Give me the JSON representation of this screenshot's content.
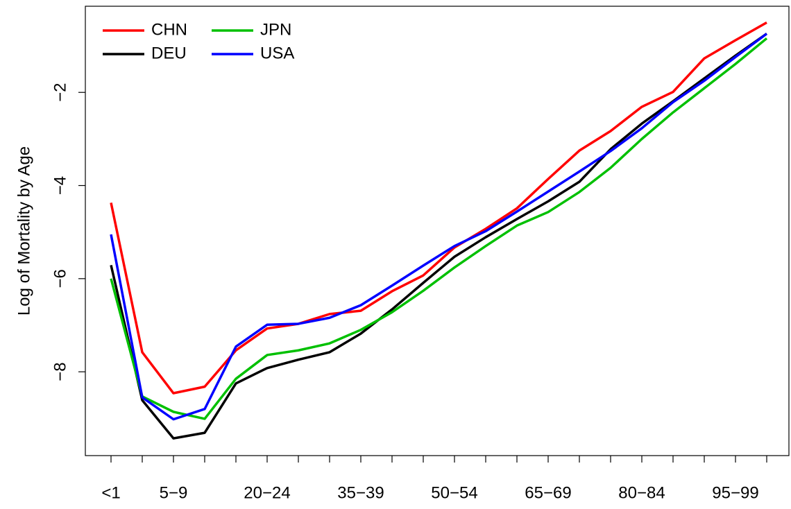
{
  "chart_data": {
    "type": "line",
    "y_label": "Log of Mortality by Age",
    "categories": [
      "<1",
      null,
      "5−9",
      null,
      null,
      "20−24",
      null,
      null,
      "35−39",
      null,
      null,
      "50−54",
      null,
      null,
      "65−69",
      null,
      null,
      "80−84",
      null,
      null,
      "95−99",
      null
    ],
    "ylim": [
      -9.8,
      -0.15
    ],
    "yticks": [
      {
        "value": -2,
        "label": "−2"
      },
      {
        "value": -4,
        "label": "−4"
      },
      {
        "value": -6,
        "label": "−6"
      },
      {
        "value": -8,
        "label": "−8"
      }
    ],
    "legend": "top-left",
    "series": [
      {
        "name": "CHN",
        "color": "#ff0000",
        "values": [
          -4.37,
          -7.58,
          -8.46,
          -8.32,
          -7.54,
          -7.07,
          -6.97,
          -6.76,
          -6.69,
          -6.27,
          -5.93,
          -5.33,
          -4.93,
          -4.49,
          -3.86,
          -3.25,
          -2.83,
          -2.31,
          -1.99,
          -1.27,
          -0.88,
          -0.5
        ]
      },
      {
        "name": "DEU",
        "color": "#000000",
        "values": [
          -5.71,
          -8.61,
          -9.43,
          -9.31,
          -8.25,
          -7.92,
          -7.74,
          -7.58,
          -7.18,
          -6.66,
          -6.09,
          -5.53,
          -5.11,
          -4.72,
          -4.34,
          -3.92,
          -3.22,
          -2.67,
          -2.19,
          -1.7,
          -1.21,
          -0.74
        ]
      },
      {
        "name": "JPN",
        "color": "#00c000",
        "values": [
          -6.0,
          -8.53,
          -8.86,
          -9.01,
          -8.15,
          -7.64,
          -7.54,
          -7.39,
          -7.1,
          -6.72,
          -6.26,
          -5.76,
          -5.3,
          -4.86,
          -4.57,
          -4.14,
          -3.62,
          -3.0,
          -2.43,
          -1.91,
          -1.39,
          -0.84
        ]
      },
      {
        "name": "USA",
        "color": "#0000ff",
        "values": [
          -5.05,
          -8.55,
          -9.02,
          -8.8,
          -7.46,
          -6.99,
          -6.97,
          -6.84,
          -6.57,
          -6.15,
          -5.72,
          -5.3,
          -4.98,
          -4.56,
          -4.13,
          -3.7,
          -3.26,
          -2.77,
          -2.21,
          -1.75,
          -1.24,
          -0.74
        ]
      }
    ]
  }
}
